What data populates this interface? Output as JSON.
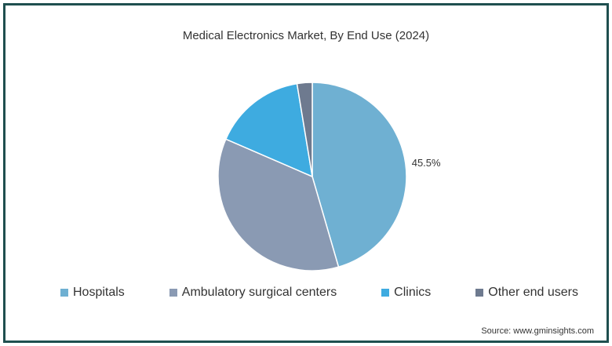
{
  "chart_data": {
    "type": "pie",
    "title": "Medical Electronics Market, By End Use (2024)",
    "series": [
      {
        "name": "Hospitals",
        "value": 45.5,
        "color": "#6fb0d2"
      },
      {
        "name": "Ambulatory surgical centers",
        "value": 36.0,
        "color": "#8a9ab3"
      },
      {
        "name": "Clinics",
        "value": 15.9,
        "color": "#3eabe0"
      },
      {
        "name": "Other end users",
        "value": 2.6,
        "color": "#6e7a8f"
      }
    ],
    "data_labels": [
      "45.5%"
    ],
    "legend_position": "bottom"
  },
  "source": "Source: www.gminsights.com"
}
